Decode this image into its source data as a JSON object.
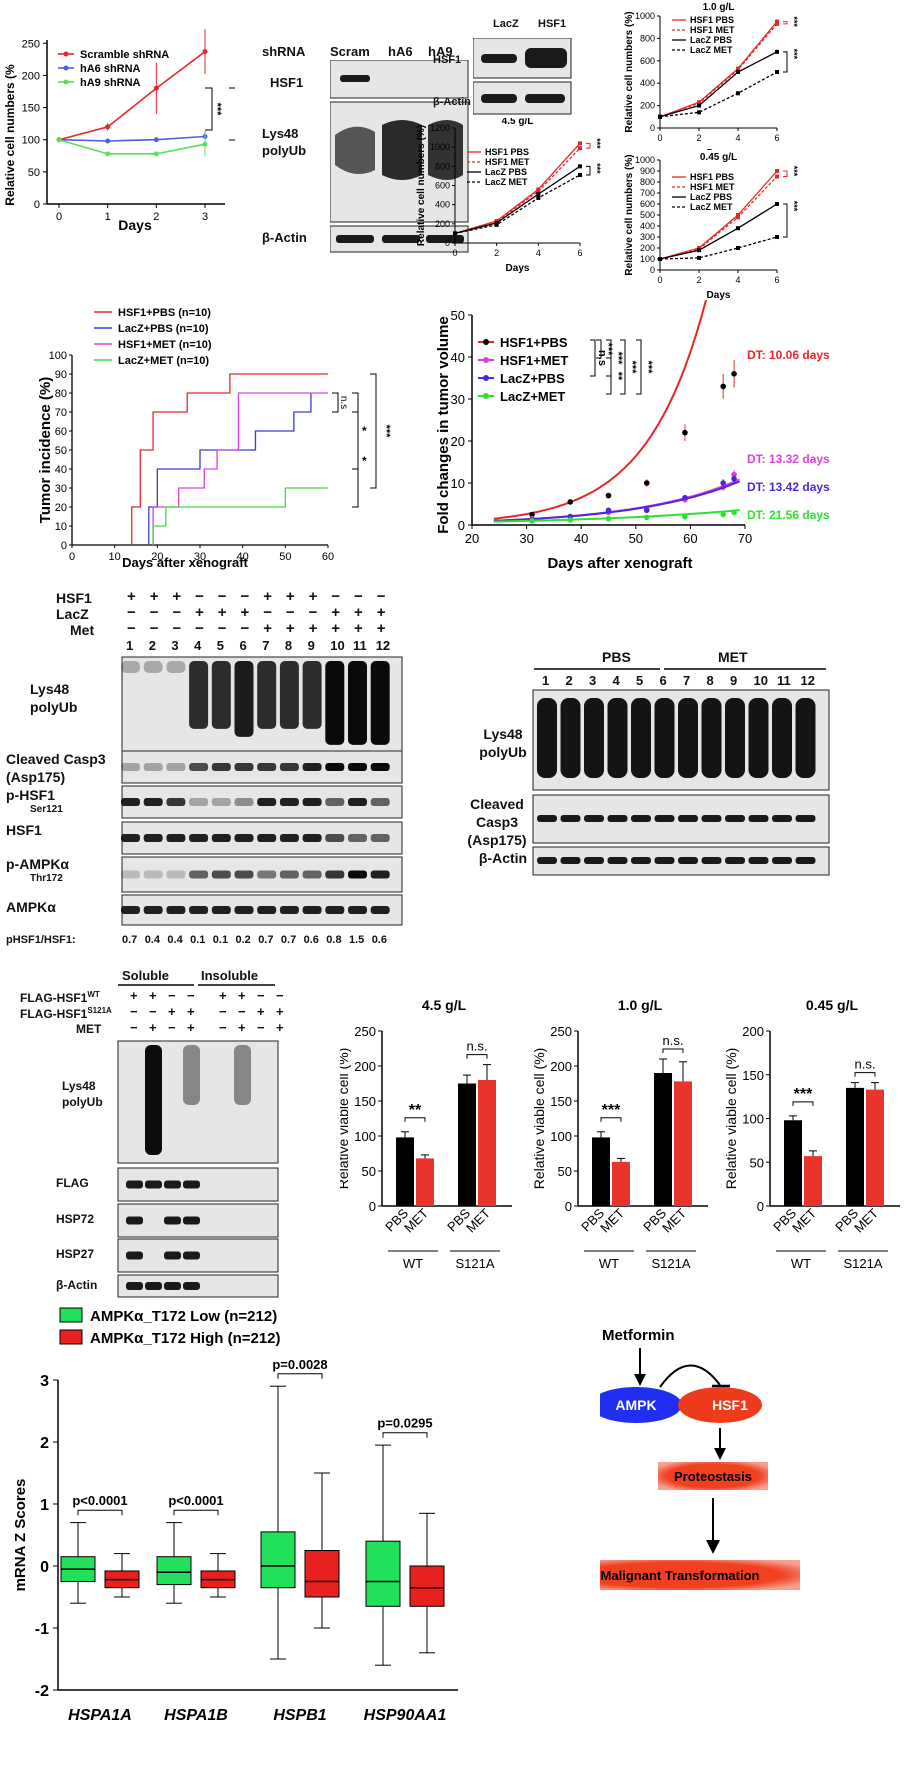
{
  "panelA": {
    "chart": {
      "type": "line",
      "ylabel": "Relative cell numbers (%",
      "xlabel": "Days",
      "x": [
        0,
        1,
        2,
        3
      ],
      "xticks": [
        "0",
        "1",
        "2",
        "3"
      ],
      "yticks": [
        "0",
        "50",
        "100",
        "150",
        "200",
        "250"
      ],
      "ylim": [
        0,
        250
      ],
      "series": [
        {
          "name": "Scramble shRNA",
          "color": "#e8262a",
          "values": [
            100,
            120,
            180,
            237
          ]
        },
        {
          "name": "hA6  shRNA",
          "color": "#4f5fe0",
          "values": [
            100,
            98,
            100,
            105
          ]
        },
        {
          "name": "hA9  shRNA",
          "color": "#57e057",
          "values": [
            100,
            78,
            78,
            93
          ]
        }
      ],
      "sig": [
        "***",
        "***"
      ]
    },
    "blot": {
      "header": "shRNA",
      "lanes": [
        "Scram",
        "hA6",
        "hA9"
      ],
      "rows": [
        "HSF1",
        "Lys48 polyUb",
        "β-Actin"
      ]
    }
  },
  "panelB": {
    "blot": {
      "lanes": [
        "LacZ",
        "HSF1"
      ],
      "rows": [
        "HSF1",
        "β-Actin"
      ]
    },
    "charts": [
      {
        "title": "4.5 g/L",
        "xlabel": "Days",
        "ylabel": "Relative cell numbers (%)",
        "x": [
          0,
          2,
          4,
          6
        ],
        "yticks": [
          "0",
          "200",
          "400",
          "600",
          "800",
          "1000",
          "1200"
        ],
        "ylim": [
          0,
          1200
        ],
        "series": [
          {
            "name": "HSF1 PBS",
            "values": [
              100,
              230,
              560,
              1040
            ]
          },
          {
            "name": "HSF1 MET",
            "values": [
              100,
              220,
              540,
              990
            ]
          },
          {
            "name": "LacZ PBS",
            "values": [
              100,
              210,
              510,
              800
            ]
          },
          {
            "name": "LacZ MET",
            "values": [
              100,
              190,
              470,
              710
            ]
          }
        ],
        "sig": [
          "***",
          "***"
        ]
      },
      {
        "title": "1.0 g/L",
        "xlabel": "Days",
        "ylabel": "Relative cell numbers (%)",
        "x": [
          0,
          2,
          4,
          6
        ],
        "yticks": [
          "0",
          "200",
          "400",
          "600",
          "800",
          "1000"
        ],
        "ylim": [
          0,
          1000
        ],
        "series": [
          {
            "name": "HSF1 PBS",
            "values": [
              100,
              230,
              530,
              950
            ]
          },
          {
            "name": "HSF1 MET",
            "values": [
              100,
              220,
              520,
              930
            ]
          },
          {
            "name": "LacZ PBS",
            "values": [
              100,
              200,
              500,
              680
            ]
          },
          {
            "name": "LacZ MET",
            "values": [
              100,
              140,
              310,
              500
            ]
          }
        ],
        "sig": [
          "***",
          "***"
        ]
      },
      {
        "title": "0.45 g/L",
        "xlabel": "Days",
        "ylabel": "Relative cell numbers (%)",
        "x": [
          0,
          2,
          4,
          6
        ],
        "yticks": [
          "0",
          "100",
          "200",
          "300",
          "400",
          "500",
          "600",
          "700",
          "800",
          "900",
          "1000"
        ],
        "ylim": [
          0,
          1000
        ],
        "series": [
          {
            "name": "HSF1 PBS",
            "values": [
              100,
              200,
              500,
              900
            ]
          },
          {
            "name": "HSF1 MET",
            "values": [
              100,
              190,
              480,
              850
            ]
          },
          {
            "name": "LacZ PBS",
            "values": [
              100,
              180,
              380,
              600
            ]
          },
          {
            "name": "LacZ MET",
            "values": [
              100,
              110,
              200,
              300
            ]
          }
        ],
        "sig": [
          "***",
          "***"
        ]
      }
    ]
  },
  "panelC": {
    "chart": {
      "type": "line",
      "ylabel": "Tumor incidence (%)",
      "xlabel": "Days after xenograft",
      "xticks": [
        "0",
        "10",
        "20",
        "30",
        "40",
        "50",
        "60"
      ],
      "yticks": [
        "0",
        "10",
        "20",
        "30",
        "40",
        "50",
        "60",
        "70",
        "80",
        "90",
        "100"
      ],
      "series": [
        {
          "name": "HSF1+PBS (n=10)",
          "color": "#e8262a"
        },
        {
          "name": "LacZ+PBS (n=10)",
          "color": "#3b3bd8"
        },
        {
          "name": "HSF1+MET (n=10)",
          "color": "#e040e0"
        },
        {
          "name": "LacZ+MET (n=10)",
          "color": "#45d845"
        }
      ],
      "sig": [
        "n.s",
        "*",
        "*",
        "***"
      ]
    }
  },
  "panelD": {
    "chart": {
      "type": "scatter",
      "ylabel": "Fold changes in tumor volume",
      "xlabel": "Days after xenograft",
      "xticks": [
        "20",
        "30",
        "40",
        "50",
        "60",
        "70"
      ],
      "yticks": [
        "0",
        "10",
        "20",
        "30",
        "40",
        "50"
      ],
      "series": [
        {
          "name": "HSF1+PBS",
          "color": "#e8262a",
          "dt": "DT: 10.06 days",
          "x": [
            31,
            38,
            45,
            52,
            59,
            66,
            68
          ],
          "y": [
            2.5,
            5.5,
            7,
            10,
            22,
            33,
            36
          ]
        },
        {
          "name": "HSF1+MET",
          "color": "#e040e0",
          "dt": "DT: 13.32 days",
          "x": [
            31,
            38,
            45,
            52,
            59,
            66,
            68
          ],
          "y": [
            1.5,
            2,
            3,
            4,
            6,
            9,
            12
          ]
        },
        {
          "name": "LacZ+PBS",
          "color": "#4a2ad8",
          "dt": "DT: 13.42 days",
          "x": [
            31,
            38,
            45,
            52,
            59,
            66,
            68
          ],
          "y": [
            1.2,
            2,
            3.5,
            3.5,
            6.5,
            10,
            11
          ]
        },
        {
          "name": "LacZ+MET",
          "color": "#2fe02f",
          "dt": "DT: 21.56 days",
          "x": [
            31,
            38,
            45,
            52,
            59,
            66,
            68
          ],
          "y": [
            1,
            1.2,
            1.5,
            1.8,
            2,
            2.5,
            3
          ]
        }
      ],
      "sig": [
        "***",
        "***",
        "***",
        "n.s",
        "***",
        "***",
        "**"
      ]
    }
  },
  "panelE": {
    "conditions": [
      {
        "label": "HSF1",
        "marks": [
          "+",
          "+",
          "+",
          "−",
          "−",
          "−",
          "+",
          "+",
          "+",
          "−",
          "−",
          "−"
        ]
      },
      {
        "label": "LacZ",
        "marks": [
          "−",
          "−",
          "−",
          "+",
          "+",
          "+",
          "−",
          "−",
          "−",
          "+",
          "+",
          "+"
        ]
      },
      {
        "label": "Met",
        "marks": [
          "−",
          "−",
          "−",
          "−",
          "−",
          "−",
          "+",
          "+",
          "+",
          "+",
          "+",
          "+"
        ]
      }
    ],
    "lanes": [
      "1",
      "2",
      "3",
      "4",
      "5",
      "6",
      "7",
      "8",
      "9",
      "10",
      "11",
      "12"
    ],
    "rows": [
      {
        "label": "Lys48",
        "label2": "polyUb"
      },
      {
        "label": "Cleaved Casp3",
        "label2": "(Asp175)"
      },
      {
        "label": "p-HSF1",
        "sub": "Ser121"
      },
      {
        "label": "HSF1"
      },
      {
        "label": "p-AMPKα",
        "sub": "Thr172"
      },
      {
        "label": "AMPKα"
      }
    ],
    "ratio_label": "pHSF1/HSF1:",
    "ratios": [
      "0.7",
      "0.4",
      "0.4",
      "0.1",
      "0.1",
      "0.2",
      "0.7",
      "0.7",
      "0.6",
      "0.8",
      "1.5",
      "0.6"
    ]
  },
  "panelF": {
    "groups": [
      "PBS",
      "MET"
    ],
    "lanes": [
      "1",
      "2",
      "3",
      "4",
      "5",
      "6",
      "7",
      "8",
      "9",
      "10",
      "11",
      "12"
    ],
    "rows": [
      {
        "label": "Lys48",
        "label2": "polyUb"
      },
      {
        "label": "Cleaved Casp3",
        "label2": "(Asp175)"
      },
      {
        "label": "β-Actin"
      }
    ]
  },
  "panelG": {
    "groups": [
      "Soluble",
      "Insoluble"
    ],
    "conditions": [
      {
        "label": "FLAG-HSF1",
        "sup": "WT",
        "marks": [
          "+",
          "+",
          "−",
          "−",
          "+",
          "+",
          "−",
          "−"
        ]
      },
      {
        "label": "FLAG-HSF1",
        "sup": "S121A",
        "marks": [
          "−",
          "−",
          "+",
          "+",
          "−",
          "−",
          "+",
          "+"
        ]
      },
      {
        "label": "MET",
        "marks": [
          "−",
          "+",
          "−",
          "+",
          "−",
          "+",
          "−",
          "+"
        ]
      }
    ],
    "rows": [
      {
        "label": "Lys48",
        "label2": "polyUb"
      },
      {
        "label": "FLAG"
      },
      {
        "label": "HSP72"
      },
      {
        "label": "HSP27"
      },
      {
        "label": "β-Actin"
      }
    ]
  },
  "panelH": {
    "chart_data": [
      {
        "type": "bar",
        "title": "4.5 g/L",
        "ylabel": "Relative viable cell (%)",
        "yticks": [
          "0",
          "50",
          "100",
          "150",
          "200",
          "250"
        ],
        "ylim": [
          0,
          250
        ],
        "categories": [
          "PBS",
          "MET",
          "PBS",
          "MET"
        ],
        "groups": [
          "WT",
          "S121A"
        ],
        "values": [
          98,
          68,
          175,
          180
        ],
        "errors": [
          8,
          5,
          12,
          22
        ],
        "sig": [
          "**",
          "n.s."
        ]
      },
      {
        "type": "bar",
        "title": "1.0 g/L",
        "ylabel": "Relative viable cell (%)",
        "yticks": [
          "0",
          "50",
          "100",
          "150",
          "200",
          "250"
        ],
        "ylim": [
          0,
          250
        ],
        "categories": [
          "PBS",
          "MET",
          "PBS",
          "MET"
        ],
        "groups": [
          "WT",
          "S121A"
        ],
        "values": [
          98,
          63,
          190,
          178
        ],
        "errors": [
          8,
          5,
          20,
          28
        ],
        "sig": [
          "***",
          "n.s."
        ]
      },
      {
        "type": "bar",
        "title": "0.45 g/L",
        "ylabel": "Relative viable cell (%)",
        "yticks": [
          "0",
          "50",
          "100",
          "150",
          "200"
        ],
        "ylim": [
          0,
          200
        ],
        "categories": [
          "PBS",
          "MET",
          "PBS",
          "MET"
        ],
        "groups": [
          "WT",
          "S121A"
        ],
        "values": [
          98,
          57,
          135,
          133
        ],
        "errors": [
          5,
          6,
          6,
          8
        ],
        "sig": [
          "***",
          "n.s."
        ]
      }
    ]
  },
  "panelI": {
    "chart": {
      "type": "box",
      "ylabel": "mRNA Z Scores",
      "yticks": [
        "-2",
        "-1",
        "0",
        "1",
        "2",
        "3"
      ],
      "ylim": [
        -2,
        3
      ],
      "legend": [
        {
          "name": "AMPKα_T172 Low (n=212)",
          "color": "#22e05a"
        },
        {
          "name": "AMPKα_T172 High (n=212)",
          "color": "#e82020"
        }
      ],
      "genes": [
        "HSPA1A",
        "HSPA1B",
        "HSPB1",
        "HSP90AA1"
      ],
      "pvalues": [
        "p<0.0001",
        "p<0.0001",
        "p=0.0028",
        "p=0.0295"
      ],
      "boxes": [
        {
          "min": -0.6,
          "q1": -0.25,
          "med": -0.05,
          "q3": 0.15,
          "max": 0.7
        },
        {
          "min": -0.5,
          "q1": -0.35,
          "med": -0.22,
          "q3": -0.08,
          "max": 0.2
        },
        {
          "min": -0.6,
          "q1": -0.3,
          "med": -0.1,
          "q3": 0.15,
          "max": 0.7
        },
        {
          "min": -0.5,
          "q1": -0.35,
          "med": -0.22,
          "q3": -0.08,
          "max": 0.2
        },
        {
          "min": -1.5,
          "q1": -0.35,
          "med": 0.0,
          "q3": 0.55,
          "max": 2.9
        },
        {
          "min": -1.0,
          "q1": -0.5,
          "med": -0.25,
          "q3": 0.25,
          "max": 1.5
        },
        {
          "min": -1.6,
          "q1": -0.65,
          "med": -0.25,
          "q3": 0.4,
          "max": 1.95
        },
        {
          "min": -1.4,
          "q1": -0.65,
          "med": -0.35,
          "q3": 0.0,
          "max": 0.85
        }
      ]
    }
  },
  "panelJ": {
    "nodes": {
      "metformin": "Metformin",
      "ampk": "AMPK",
      "hsf1": "HSF1",
      "proteostasis": "Proteostasis",
      "malignant": "Malignant Transformation"
    }
  }
}
